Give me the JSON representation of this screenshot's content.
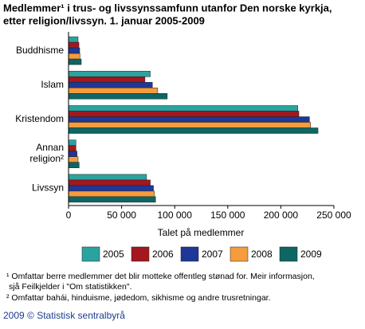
{
  "chart_data": {
    "type": "bar",
    "orientation": "horizontal",
    "title": [
      "Medlemmer¹ i trus- og livssynssamfunn utanfor Den norske kyrkja,",
      "etter religion/livssyn. 1. januar 2005-2009"
    ],
    "categories": [
      "Buddhisme",
      "Islam",
      "Kristendom",
      "Annan religion²",
      "Livssyn"
    ],
    "series": [
      {
        "name": "2005",
        "color": "#2aa3a0",
        "values": [
          9000,
          77000,
          216000,
          7000,
          73500
        ]
      },
      {
        "name": "2006",
        "color": "#a3171e",
        "values": [
          9800,
          72000,
          217000,
          7000,
          77000
        ]
      },
      {
        "name": "2007",
        "color": "#1f3796",
        "values": [
          10500,
          79000,
          227000,
          8000,
          80000
        ]
      },
      {
        "name": "2008",
        "color": "#f59c3c",
        "values": [
          10800,
          84000,
          228000,
          9000,
          81000
        ]
      },
      {
        "name": "2009",
        "color": "#0e6663",
        "values": [
          12000,
          93000,
          235000,
          10000,
          82000
        ]
      }
    ],
    "xlim": [
      0,
      250000
    ],
    "xticks": [
      0,
      {
        "value": 50000,
        "label": "50 000"
      },
      {
        "value": 100000,
        "label": "100 000"
      },
      {
        "value": 150000,
        "label": "150 000"
      },
      {
        "value": 200000,
        "label": "200 000"
      },
      {
        "value": 250000,
        "label": "250 000"
      }
    ],
    "xlabel": "Talet på medlemmer",
    "footnotes": [
      "¹ Omfattar berre medlemmer det blir motteke offentleg stønad for. Meir informasjon,",
      "sjå Feilkjelder i \"Om statistikken\".",
      "² Omfattar bahái, hinduisme, jødedom, sikhisme og andre trusretningar."
    ],
    "source": "2009 © Statistisk sentralbyrå"
  }
}
